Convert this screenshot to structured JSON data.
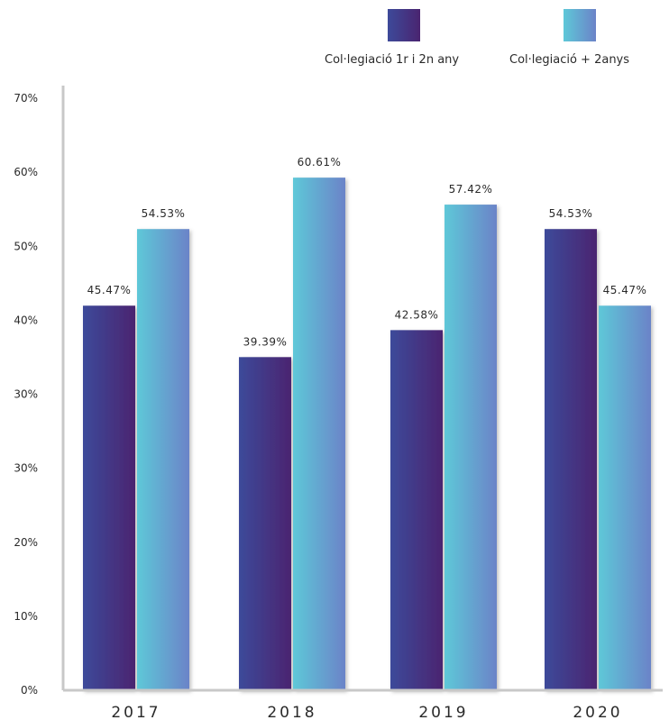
{
  "chart_data": {
    "type": "bar",
    "categories": [
      "2017",
      "2018",
      "2019",
      "2020"
    ],
    "series": [
      {
        "name": "Col·legiació 1r i 2n any",
        "values": [
          45.47,
          39.39,
          42.58,
          54.53
        ],
        "labels": [
          "45.47%",
          "39.39%",
          "42.58%",
          "54.53%"
        ]
      },
      {
        "name": "Col·legiació + 2anys",
        "values": [
          54.53,
          60.61,
          57.42,
          45.47
        ],
        "labels": [
          "54.53%",
          "60.61%",
          "57.42%",
          "45.47%"
        ]
      }
    ],
    "ytick_labels": [
      "0%",
      "10%",
      "20%",
      "30%",
      "30%",
      "40%",
      "50%",
      "60%",
      "70%"
    ],
    "ylim": [
      0,
      70
    ],
    "title": "",
    "xlabel": "",
    "ylabel": "",
    "grid": false,
    "legend": "top-right",
    "colors": {
      "series1_start": "#3d4a9a",
      "series1_end": "#4a2470",
      "series2_start": "#5ec8d8",
      "series2_end": "#6b83c8",
      "axis": "#c8c8c8",
      "text": "#2a2a2a"
    }
  }
}
